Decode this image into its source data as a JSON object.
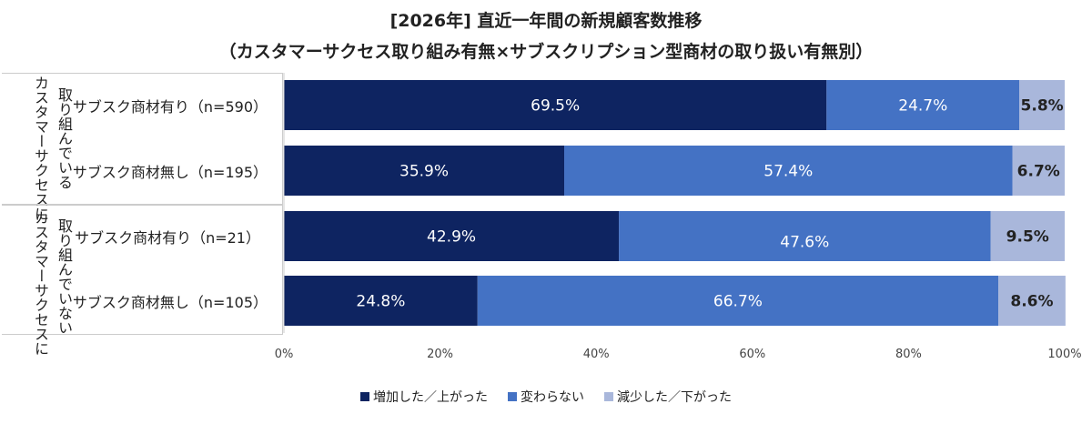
{
  "chart_data": {
    "type": "bar",
    "orientation": "horizontal-stacked-100",
    "title": "[2026年] 直近一年間の新規顧客数推移",
    "subtitle": "（カスタマーサクセス取り組み有無×サブスクリプション型商材の取り扱い有無別）",
    "groups": [
      {
        "label_lines": [
          "カスタマーサクセスに",
          "取り組んでいる"
        ],
        "rows": [
          0,
          1
        ]
      },
      {
        "label_lines": [
          "カスタマーサクセスに",
          "取り組んでいない"
        ],
        "rows": [
          2,
          3
        ]
      }
    ],
    "categories": [
      "サブスク商材有り（n=590）",
      "サブスク商材無し（n=195）",
      "サブスク商材有り（n=21）",
      "サブスク商材無し（n=105）"
    ],
    "series": [
      {
        "name": "増加した／上がった",
        "color": "#0e2461",
        "values": [
          69.5,
          35.9,
          42.9,
          24.8
        ]
      },
      {
        "name": "変わらない",
        "color": "#4472c4",
        "values": [
          24.7,
          57.4,
          47.6,
          66.7
        ]
      },
      {
        "name": "減少した／下がった",
        "color": "#a9b7db",
        "values": [
          5.8,
          6.7,
          9.5,
          8.6
        ]
      }
    ],
    "value_suffix": "%",
    "xlim": [
      0,
      100
    ],
    "xticks": [
      "0%",
      "20%",
      "40%",
      "60%",
      "80%",
      "100%"
    ],
    "grid": false,
    "legend": "bottom"
  }
}
